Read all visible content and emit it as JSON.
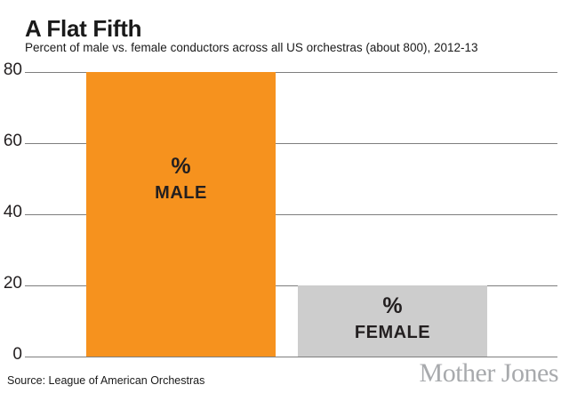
{
  "header": {
    "title": "A Flat Fifth",
    "subtitle": "Percent of male vs. female conductors across all US orchestras (about 800), 2012-13"
  },
  "chart_data": {
    "type": "bar",
    "title": "A Flat Fifth",
    "subtitle": "Percent of male vs. female conductors across all US orchestras (about 800), 2012-13",
    "categories": [
      "MALE",
      "FEMALE"
    ],
    "values": [
      80,
      20
    ],
    "series": [
      {
        "name": "MALE",
        "value": 80,
        "color": "#F6921E",
        "label_unit": "%",
        "label": "MALE"
      },
      {
        "name": "FEMALE",
        "value": 20,
        "color": "#CDCDCD",
        "label_unit": "%",
        "label": "FEMALE"
      }
    ],
    "yticks": [
      80,
      60,
      40,
      20,
      0
    ],
    "ylim": [
      0,
      80
    ],
    "grid": true,
    "gridline_color": "#7E7E7E",
    "legend": "none",
    "xlabel": "",
    "ylabel": ""
  },
  "footer": {
    "source": "Source: League of American Orchestras",
    "logo": "Mother Jones",
    "logo_color": "#A8AAAD"
  },
  "colors": {
    "background": "#FFFFFF",
    "text": "#231F20",
    "male_bar": "#F6921E",
    "female_bar": "#CDCDCD",
    "gridline": "#7E7E7E",
    "logo_gray": "#A8AAAD"
  }
}
